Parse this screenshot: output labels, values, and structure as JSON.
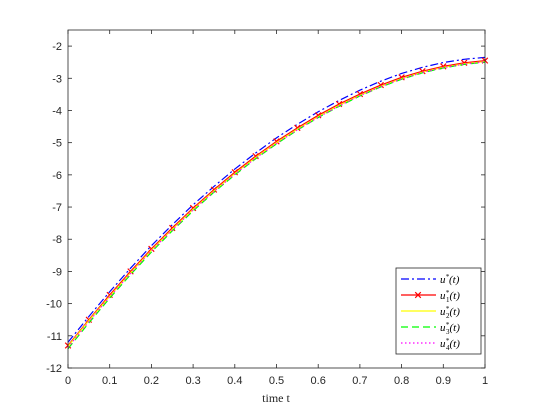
{
  "chart_data": {
    "type": "line",
    "title": "",
    "xlabel": "time t",
    "ylabel": "",
    "xlim": [
      0,
      1
    ],
    "ylim": [
      -12,
      -1.5
    ],
    "x_ticks": [
      "0",
      "0.1",
      "0.2",
      "0.3",
      "0.4",
      "0.5",
      "0.6",
      "0.7",
      "0.8",
      "0.9",
      "1"
    ],
    "y_ticks": [
      "-12",
      "-11",
      "-10",
      "-9",
      "-8",
      "-7",
      "-6",
      "-5",
      "-4",
      "-3",
      "-2"
    ],
    "grid": false,
    "legend_position": "bottom-right",
    "x": [
      0,
      0.05,
      0.1,
      0.15,
      0.2,
      0.25,
      0.3,
      0.35,
      0.4,
      0.45,
      0.5,
      0.55,
      0.6,
      0.65,
      0.7,
      0.75,
      0.8,
      0.85,
      0.9,
      0.95,
      1
    ],
    "series": [
      {
        "name": "u*(t)",
        "color": "#0000ff",
        "style": "dashdot",
        "values": [
          -11.2,
          -10.4,
          -9.63,
          -8.9,
          -8.2,
          -7.55,
          -6.93,
          -6.36,
          -5.82,
          -5.32,
          -4.85,
          -4.43,
          -4.04,
          -3.69,
          -3.37,
          -3.09,
          -2.85,
          -2.66,
          -2.51,
          -2.41,
          -2.35
        ]
      },
      {
        "name": "u1*(t)",
        "color": "#ff0000",
        "style": "solid-x",
        "values": [
          -11.3,
          -10.5,
          -9.73,
          -9.0,
          -8.3,
          -7.65,
          -7.03,
          -6.46,
          -5.92,
          -5.42,
          -4.96,
          -4.54,
          -4.15,
          -3.8,
          -3.49,
          -3.21,
          -2.97,
          -2.78,
          -2.63,
          -2.52,
          -2.45
        ]
      },
      {
        "name": "u2*(t)",
        "color": "#ffff00",
        "style": "solid",
        "values": [
          -11.33,
          -10.53,
          -9.77,
          -9.04,
          -8.34,
          -7.69,
          -7.07,
          -6.5,
          -5.96,
          -5.46,
          -5.0,
          -4.58,
          -4.19,
          -3.84,
          -3.53,
          -3.25,
          -3.01,
          -2.81,
          -2.66,
          -2.55,
          -2.48
        ]
      },
      {
        "name": "u3*(t)",
        "color": "#00ff00",
        "style": "dashed",
        "values": [
          -11.4,
          -10.6,
          -9.83,
          -9.1,
          -8.4,
          -7.74,
          -7.12,
          -6.54,
          -6.0,
          -5.5,
          -5.04,
          -4.61,
          -4.22,
          -3.87,
          -3.55,
          -3.27,
          -3.03,
          -2.83,
          -2.68,
          -2.57,
          -2.5
        ]
      },
      {
        "name": "u4*(t)",
        "color": "#ff00ff",
        "style": "dotted",
        "values": [
          -11.36,
          -10.56,
          -9.79,
          -9.06,
          -8.36,
          -7.71,
          -7.09,
          -6.52,
          -5.98,
          -5.48,
          -5.02,
          -4.6,
          -4.21,
          -3.86,
          -3.54,
          -3.26,
          -3.02,
          -2.82,
          -2.67,
          -2.56,
          -2.49
        ]
      }
    ]
  }
}
